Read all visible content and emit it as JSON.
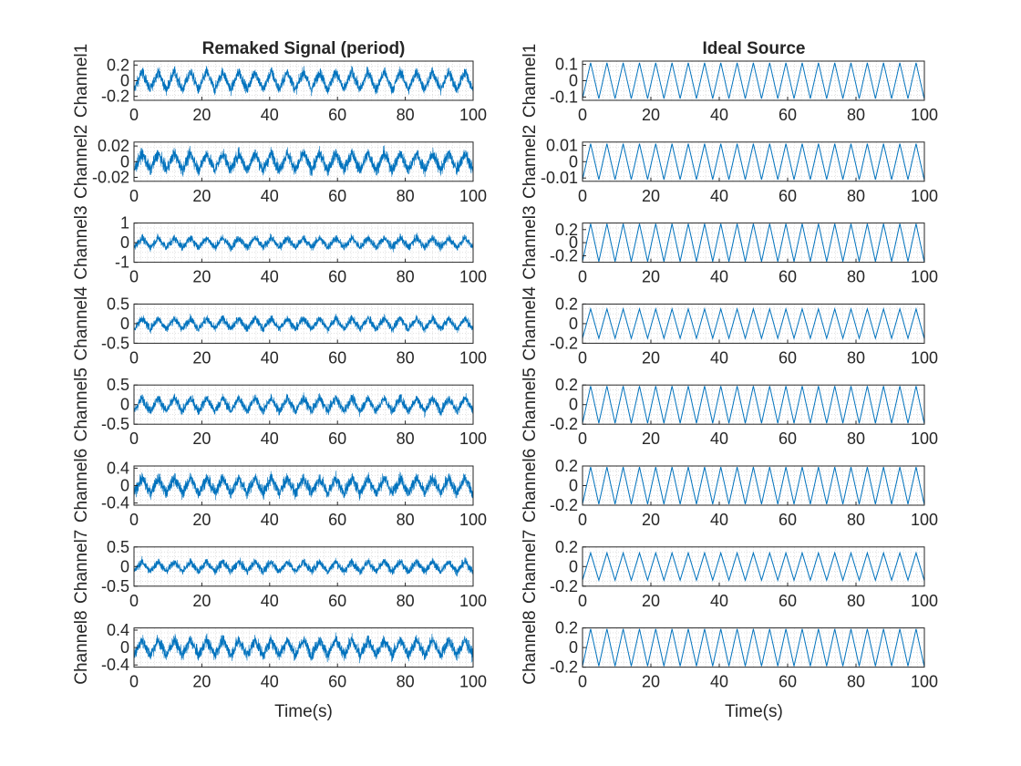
{
  "figure": {
    "left_title": "Remaked Signal (period)",
    "right_title": "Ideal Source",
    "xlabel": "Time(s)"
  },
  "chart_data": [
    {
      "type": "line",
      "panel": "left",
      "title": "Remaked Signal (period)",
      "ylabel": "Channel1",
      "xlim": [
        0,
        100
      ],
      "ylim": [
        -0.25,
        0.25
      ],
      "yticks": [
        -0.2,
        0,
        0.2
      ],
      "yticklabels": [
        "-0.2",
        "0",
        "0.2"
      ],
      "xticks": [
        0,
        20,
        40,
        60,
        80,
        100
      ],
      "grid": true,
      "series": [
        {
          "waveform": "noisy-triangle",
          "period": 4.76,
          "amplitude": 0.12,
          "noise": 0.07
        }
      ]
    },
    {
      "type": "line",
      "panel": "left",
      "ylabel": "Channel2",
      "xlim": [
        0,
        100
      ],
      "ylim": [
        -0.025,
        0.025
      ],
      "yticks": [
        -0.02,
        0,
        0.02
      ],
      "yticklabels": [
        "-0.02",
        "0",
        "0.02"
      ],
      "xticks": [
        0,
        20,
        40,
        60,
        80,
        100
      ],
      "grid": true,
      "series": [
        {
          "waveform": "noisy-triangle",
          "period": 4.76,
          "amplitude": 0.011,
          "noise": 0.008
        }
      ]
    },
    {
      "type": "line",
      "panel": "left",
      "ylabel": "Channel3",
      "xlim": [
        0,
        100
      ],
      "ylim": [
        -1,
        1
      ],
      "yticks": [
        -1,
        0,
        1
      ],
      "yticklabels": [
        "-1",
        "0",
        "1"
      ],
      "xticks": [
        0,
        20,
        40,
        60,
        80,
        100
      ],
      "grid": true,
      "series": [
        {
          "waveform": "noisy-triangle",
          "period": 4.76,
          "amplitude": 0.25,
          "noise": 0.2
        }
      ]
    },
    {
      "type": "line",
      "panel": "left",
      "ylabel": "Channel4",
      "xlim": [
        0,
        100
      ],
      "ylim": [
        -0.5,
        0.5
      ],
      "yticks": [
        -0.5,
        0,
        0.5
      ],
      "yticklabels": [
        "-0.5",
        "0",
        "0.5"
      ],
      "xticks": [
        0,
        20,
        40,
        60,
        80,
        100
      ],
      "grid": true,
      "series": [
        {
          "waveform": "noisy-triangle",
          "period": 4.76,
          "amplitude": 0.14,
          "noise": 0.1
        }
      ]
    },
    {
      "type": "line",
      "panel": "left",
      "ylabel": "Channel5",
      "xlim": [
        0,
        100
      ],
      "ylim": [
        -0.5,
        0.5
      ],
      "yticks": [
        -0.5,
        0,
        0.5
      ],
      "yticklabels": [
        "-0.5",
        "0",
        "0.5"
      ],
      "xticks": [
        0,
        20,
        40,
        60,
        80,
        100
      ],
      "grid": true,
      "series": [
        {
          "waveform": "noisy-triangle",
          "period": 4.76,
          "amplitude": 0.17,
          "noise": 0.12
        }
      ]
    },
    {
      "type": "line",
      "panel": "left",
      "ylabel": "Channel6",
      "xlim": [
        0,
        100
      ],
      "ylim": [
        -0.45,
        0.45
      ],
      "yticks": [
        -0.4,
        0,
        0.4
      ],
      "yticklabels": [
        "-0.4",
        "0",
        "0.4"
      ],
      "xticks": [
        0,
        20,
        40,
        60,
        80,
        100
      ],
      "grid": true,
      "series": [
        {
          "waveform": "noisy-triangle",
          "period": 4.76,
          "amplitude": 0.18,
          "noise": 0.14
        }
      ]
    },
    {
      "type": "line",
      "panel": "left",
      "ylabel": "Channel7",
      "xlim": [
        0,
        100
      ],
      "ylim": [
        -0.5,
        0.5
      ],
      "yticks": [
        -0.5,
        0,
        0.5
      ],
      "yticklabels": [
        "-0.5",
        "0",
        "0.5"
      ],
      "xticks": [
        0,
        20,
        40,
        60,
        80,
        100
      ],
      "grid": true,
      "series": [
        {
          "waveform": "noisy-triangle",
          "period": 4.76,
          "amplitude": 0.13,
          "noise": 0.1
        }
      ]
    },
    {
      "type": "line",
      "panel": "left",
      "ylabel": "Channel8",
      "xlim": [
        0,
        100
      ],
      "ylim": [
        -0.45,
        0.45
      ],
      "yticks": [
        -0.4,
        0,
        0.4
      ],
      "yticklabels": [
        "-0.4",
        "0",
        "0.4"
      ],
      "xlabel": "Time(s)",
      "xticks": [
        0,
        20,
        40,
        60,
        80,
        100
      ],
      "grid": true,
      "series": [
        {
          "waveform": "noisy-triangle",
          "period": 4.76,
          "amplitude": 0.18,
          "noise": 0.14
        }
      ]
    },
    {
      "type": "line",
      "panel": "right",
      "title": "Ideal Source",
      "ylabel": "Channel1",
      "xlim": [
        0,
        100
      ],
      "ylim": [
        -0.12,
        0.12
      ],
      "yticks": [
        -0.1,
        0,
        0.1
      ],
      "yticklabels": [
        "-0.1",
        "0",
        "0.1"
      ],
      "xticks": [
        0,
        20,
        40,
        60,
        80,
        100
      ],
      "grid": true,
      "series": [
        {
          "waveform": "triangle",
          "period": 4.76,
          "amplitude": 0.11
        }
      ]
    },
    {
      "type": "line",
      "panel": "right",
      "ylabel": "Channel2",
      "xlim": [
        0,
        100
      ],
      "ylim": [
        -0.012,
        0.012
      ],
      "yticks": [
        -0.01,
        0,
        0.01
      ],
      "yticklabels": [
        "-0.01",
        "0",
        "0.01"
      ],
      "xticks": [
        0,
        20,
        40,
        60,
        80,
        100
      ],
      "grid": true,
      "series": [
        {
          "waveform": "triangle",
          "period": 4.76,
          "amplitude": 0.011
        }
      ]
    },
    {
      "type": "line",
      "panel": "right",
      "ylabel": "Channel3",
      "xlim": [
        0,
        100
      ],
      "ylim": [
        -0.3,
        0.3
      ],
      "yticks": [
        -0.2,
        0,
        0.2
      ],
      "yticklabels": [
        "-0.2",
        "0",
        "0.2"
      ],
      "xticks": [
        0,
        20,
        40,
        60,
        80,
        100
      ],
      "grid": true,
      "series": [
        {
          "waveform": "triangle",
          "period": 4.76,
          "amplitude": 0.29
        }
      ]
    },
    {
      "type": "line",
      "panel": "right",
      "ylabel": "Channel4",
      "xlim": [
        0,
        100
      ],
      "ylim": [
        -0.2,
        0.2
      ],
      "yticks": [
        -0.2,
        0,
        0.2
      ],
      "yticklabels": [
        "-0.2",
        "0",
        "0.2"
      ],
      "xticks": [
        0,
        20,
        40,
        60,
        80,
        100
      ],
      "grid": true,
      "series": [
        {
          "waveform": "triangle",
          "period": 4.76,
          "amplitude": 0.15
        }
      ]
    },
    {
      "type": "line",
      "panel": "right",
      "ylabel": "Channel5",
      "xlim": [
        0,
        100
      ],
      "ylim": [
        -0.2,
        0.2
      ],
      "yticks": [
        -0.2,
        0,
        0.2
      ],
      "yticklabels": [
        "-0.2",
        "0",
        "0.2"
      ],
      "xticks": [
        0,
        20,
        40,
        60,
        80,
        100
      ],
      "grid": true,
      "series": [
        {
          "waveform": "triangle",
          "period": 4.76,
          "amplitude": 0.19
        }
      ]
    },
    {
      "type": "line",
      "panel": "right",
      "ylabel": "Channel6",
      "xlim": [
        0,
        100
      ],
      "ylim": [
        -0.2,
        0.2
      ],
      "yticks": [
        -0.2,
        0,
        0.2
      ],
      "yticklabels": [
        "-0.2",
        "0",
        "0.2"
      ],
      "xticks": [
        0,
        20,
        40,
        60,
        80,
        100
      ],
      "grid": true,
      "series": [
        {
          "waveform": "triangle",
          "period": 4.76,
          "amplitude": 0.19
        }
      ]
    },
    {
      "type": "line",
      "panel": "right",
      "ylabel": "Channel7",
      "xlim": [
        0,
        100
      ],
      "ylim": [
        -0.2,
        0.2
      ],
      "yticks": [
        -0.2,
        0,
        0.2
      ],
      "yticklabels": [
        "-0.2",
        "0",
        "0.2"
      ],
      "xticks": [
        0,
        20,
        40,
        60,
        80,
        100
      ],
      "grid": true,
      "series": [
        {
          "waveform": "triangle",
          "period": 4.76,
          "amplitude": 0.14
        }
      ]
    },
    {
      "type": "line",
      "panel": "right",
      "ylabel": "Channel8",
      "xlim": [
        0,
        100
      ],
      "ylim": [
        -0.2,
        0.2
      ],
      "yticks": [
        -0.2,
        0,
        0.2
      ],
      "yticklabels": [
        "-0.2",
        "0",
        "0.2"
      ],
      "xlabel": "Time(s)",
      "xticks": [
        0,
        20,
        40,
        60,
        80,
        100
      ],
      "grid": true,
      "series": [
        {
          "waveform": "triangle",
          "period": 4.76,
          "amplitude": 0.19
        }
      ]
    }
  ],
  "colors": {
    "line": "#0072bd",
    "axis": "#262626",
    "grid": "#c0c0c0",
    "background": "#ffffff"
  }
}
